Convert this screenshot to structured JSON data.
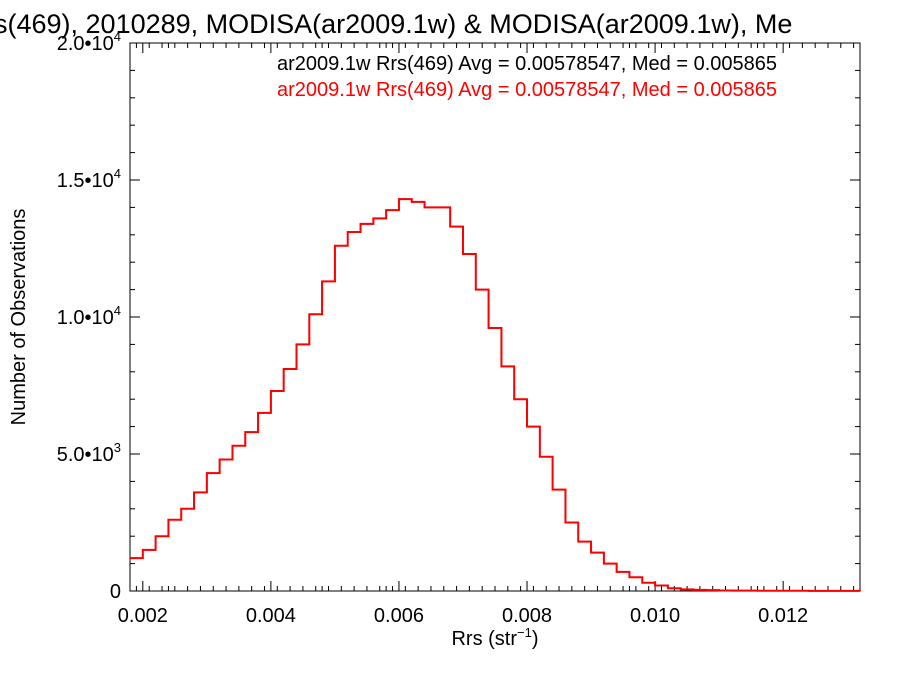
{
  "chart_data": {
    "type": "line",
    "subtype": "step-histogram",
    "title": "s(469), 2010289, MODISA(ar2009.1w) & MODISA(ar2009.1w), Me",
    "xlabel": "Rrs (str",
    "xlabel_sup": "−1",
    "xlabel_close": ")",
    "ylabel": "Number of Observations",
    "xlim": [
      0.0018,
      0.0132
    ],
    "ylim": [
      0,
      20000
    ],
    "x_ticks": [
      "0.002",
      "0.004",
      "0.006",
      "0.008",
      "0.010",
      "0.012"
    ],
    "y_ticks": [
      {
        "value": 0,
        "mant": "0",
        "exp": ""
      },
      {
        "value": 5000,
        "mant": "5.0•10",
        "exp": "3"
      },
      {
        "value": 10000,
        "mant": "1.0•10",
        "exp": "4"
      },
      {
        "value": 15000,
        "mant": "1.5•10",
        "exp": "4"
      },
      {
        "value": 20000,
        "mant": "2.0•10",
        "exp": "4"
      }
    ],
    "legend_position": "top-right",
    "series": [
      {
        "name": "ar2009.1w Rrs(469) Avg = 0.00578547, Med = 0.005865",
        "color": "#000000"
      },
      {
        "name": "ar2009.1w Rrs(469) Avg = 0.00578547, Med = 0.005865",
        "color": "#ff0000"
      }
    ],
    "x": [
      0.0018,
      0.002,
      0.0022,
      0.0024,
      0.0026,
      0.0028,
      0.003,
      0.0032,
      0.0034,
      0.0036,
      0.0038,
      0.004,
      0.0042,
      0.0044,
      0.0046,
      0.0048,
      0.005,
      0.0052,
      0.0054,
      0.0056,
      0.0058,
      0.006,
      0.0062,
      0.0064,
      0.0066,
      0.0068,
      0.007,
      0.0072,
      0.0074,
      0.0076,
      0.0078,
      0.008,
      0.0082,
      0.0084,
      0.0086,
      0.0088,
      0.009,
      0.0092,
      0.0094,
      0.0096,
      0.0098,
      0.01,
      0.0102,
      0.0104,
      0.0106,
      0.0108,
      0.011,
      0.0112,
      0.0116,
      0.012,
      0.0124,
      0.0128,
      0.0132
    ],
    "y": [
      1200,
      1500,
      2000,
      2600,
      3000,
      3600,
      4300,
      4800,
      5300,
      5800,
      6500,
      7300,
      8100,
      9000,
      10100,
      11300,
      12600,
      13100,
      13400,
      13600,
      13900,
      14300,
      14200,
      14000,
      14000,
      13300,
      12300,
      11000,
      9600,
      8200,
      7000,
      6000,
      4900,
      3700,
      2500,
      1800,
      1400,
      1000,
      700,
      500,
      300,
      200,
      100,
      60,
      40,
      30,
      20,
      15,
      10,
      8,
      5,
      3,
      2
    ],
    "grid": false,
    "step": true
  }
}
